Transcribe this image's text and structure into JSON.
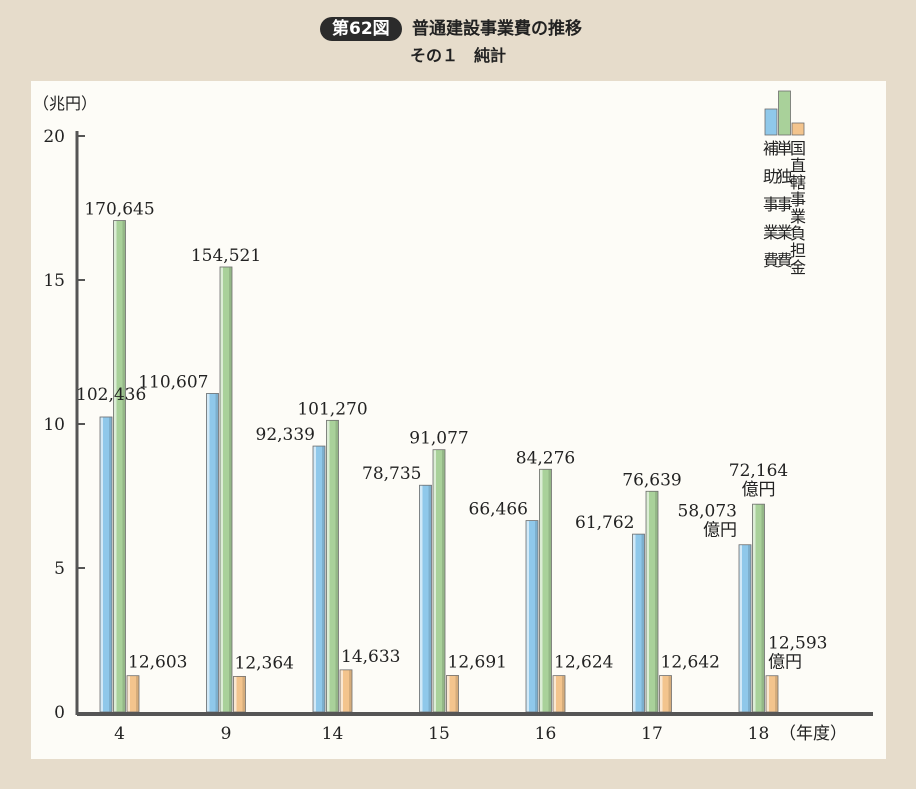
{
  "header": {
    "badge": "第62図",
    "title": "普通建設事業費の推移",
    "subtitle": "その１　純計"
  },
  "chart_data": {
    "type": "bar",
    "y_unit_label": "（兆円）",
    "x_unit_label": "（年度）",
    "ylim": [
      0,
      20
    ],
    "yticks": [
      0,
      5,
      10,
      15,
      20
    ],
    "categories": [
      "4",
      "9",
      "14",
      "15",
      "16",
      "17",
      "18"
    ],
    "series": [
      {
        "name": "補助事業費",
        "color": "#8fc8ea",
        "values": [
          102436,
          110607,
          92339,
          78735,
          66466,
          61762,
          58073
        ],
        "labels": [
          "102,436",
          "110,607",
          "92,339",
          "78,735",
          "66,466",
          "61,762",
          "58,073"
        ]
      },
      {
        "name": "単独事業費",
        "color": "#a9d19a",
        "values": [
          170645,
          154521,
          101270,
          91077,
          84276,
          76639,
          72164
        ],
        "labels": [
          "170,645",
          "154,521",
          "101,270",
          "91,077",
          "84,276",
          "76,639",
          "72,164"
        ]
      },
      {
        "name": "国直轄事業負担金",
        "color": "#f3c48d",
        "values": [
          12603,
          12364,
          14633,
          12691,
          12624,
          12642,
          12593
        ],
        "labels": [
          "12,603",
          "12,364",
          "14,633",
          "12,691",
          "12,624",
          "12,642",
          "12,593"
        ]
      }
    ],
    "last_label_unit": "億円",
    "legend_position": "top-right",
    "grid": false
  }
}
